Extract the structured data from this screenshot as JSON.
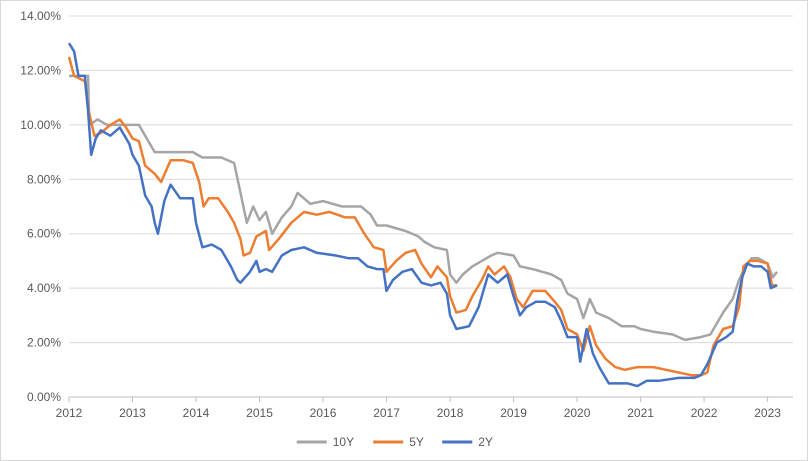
{
  "chart_data": {
    "type": "line",
    "title": "",
    "xlabel": "",
    "ylabel": "",
    "xlim": [
      2012,
      2023.4
    ],
    "ylim": [
      0,
      14
    ],
    "grid": "horizontal",
    "legend_position": "bottom",
    "x_tick_labels": [
      "2012",
      "2013",
      "2014",
      "2015",
      "2016",
      "2017",
      "2018",
      "2019",
      "2020",
      "2021",
      "2022",
      "2023"
    ],
    "y_tick_labels": [
      "0.00%",
      "2.00%",
      "4.00%",
      "6.00%",
      "8.00%",
      "10.00%",
      "12.00%",
      "14.00%"
    ],
    "series": [
      {
        "name": "10Y",
        "color": "#a5a5a5",
        "points": [
          [
            2012.0,
            11.8
          ],
          [
            2012.3,
            11.8
          ],
          [
            2012.32,
            10.0
          ],
          [
            2012.45,
            10.2
          ],
          [
            2012.6,
            10.0
          ],
          [
            2012.8,
            10.0
          ],
          [
            2013.0,
            10.0
          ],
          [
            2013.1,
            10.0
          ],
          [
            2013.35,
            9.0
          ],
          [
            2013.6,
            9.0
          ],
          [
            2013.95,
            9.0
          ],
          [
            2014.1,
            8.8
          ],
          [
            2014.4,
            8.8
          ],
          [
            2014.6,
            8.6
          ],
          [
            2014.7,
            7.5
          ],
          [
            2014.8,
            6.4
          ],
          [
            2014.9,
            7.0
          ],
          [
            2015.0,
            6.5
          ],
          [
            2015.1,
            6.8
          ],
          [
            2015.2,
            6.0
          ],
          [
            2015.35,
            6.6
          ],
          [
            2015.5,
            7.0
          ],
          [
            2015.6,
            7.5
          ],
          [
            2015.8,
            7.1
          ],
          [
            2016.0,
            7.2
          ],
          [
            2016.3,
            7.0
          ],
          [
            2016.6,
            7.0
          ],
          [
            2016.75,
            6.7
          ],
          [
            2016.85,
            6.3
          ],
          [
            2017.0,
            6.3
          ],
          [
            2017.3,
            6.1
          ],
          [
            2017.5,
            5.9
          ],
          [
            2017.6,
            5.7
          ],
          [
            2017.75,
            5.5
          ],
          [
            2017.95,
            5.4
          ],
          [
            2018.0,
            4.5
          ],
          [
            2018.1,
            4.2
          ],
          [
            2018.2,
            4.5
          ],
          [
            2018.35,
            4.8
          ],
          [
            2018.5,
            5.0
          ],
          [
            2018.65,
            5.2
          ],
          [
            2018.75,
            5.3
          ],
          [
            2019.0,
            5.2
          ],
          [
            2019.1,
            4.8
          ],
          [
            2019.3,
            4.7
          ],
          [
            2019.6,
            4.5
          ],
          [
            2019.75,
            4.3
          ],
          [
            2019.85,
            3.8
          ],
          [
            2020.0,
            3.6
          ],
          [
            2020.1,
            2.9
          ],
          [
            2020.2,
            3.6
          ],
          [
            2020.3,
            3.1
          ],
          [
            2020.5,
            2.9
          ],
          [
            2020.7,
            2.6
          ],
          [
            2020.9,
            2.6
          ],
          [
            2021.0,
            2.5
          ],
          [
            2021.2,
            2.4
          ],
          [
            2021.5,
            2.3
          ],
          [
            2021.7,
            2.1
          ],
          [
            2021.95,
            2.2
          ],
          [
            2022.1,
            2.3
          ],
          [
            2022.2,
            2.7
          ],
          [
            2022.3,
            3.1
          ],
          [
            2022.45,
            3.6
          ],
          [
            2022.55,
            4.3
          ],
          [
            2022.65,
            4.8
          ],
          [
            2022.75,
            5.1
          ],
          [
            2022.85,
            5.1
          ],
          [
            2023.0,
            4.9
          ],
          [
            2023.08,
            4.4
          ],
          [
            2023.15,
            4.6
          ]
        ]
      },
      {
        "name": "5Y",
        "color": "#ed7d31",
        "points": [
          [
            2012.0,
            12.5
          ],
          [
            2012.08,
            11.8
          ],
          [
            2012.25,
            11.6
          ],
          [
            2012.3,
            10.6
          ],
          [
            2012.4,
            9.6
          ],
          [
            2012.5,
            9.7
          ],
          [
            2012.65,
            10.0
          ],
          [
            2012.8,
            10.2
          ],
          [
            2012.9,
            9.9
          ],
          [
            2013.0,
            9.5
          ],
          [
            2013.1,
            9.4
          ],
          [
            2013.2,
            8.5
          ],
          [
            2013.35,
            8.2
          ],
          [
            2013.45,
            7.9
          ],
          [
            2013.6,
            8.7
          ],
          [
            2013.8,
            8.7
          ],
          [
            2013.95,
            8.6
          ],
          [
            2014.05,
            7.9
          ],
          [
            2014.12,
            7.0
          ],
          [
            2014.2,
            7.3
          ],
          [
            2014.35,
            7.3
          ],
          [
            2014.5,
            6.8
          ],
          [
            2014.6,
            6.4
          ],
          [
            2014.7,
            5.8
          ],
          [
            2014.75,
            5.2
          ],
          [
            2014.85,
            5.3
          ],
          [
            2014.95,
            5.9
          ],
          [
            2015.1,
            6.1
          ],
          [
            2015.15,
            5.4
          ],
          [
            2015.3,
            5.8
          ],
          [
            2015.5,
            6.4
          ],
          [
            2015.7,
            6.8
          ],
          [
            2015.9,
            6.7
          ],
          [
            2016.1,
            6.8
          ],
          [
            2016.35,
            6.6
          ],
          [
            2016.5,
            6.6
          ],
          [
            2016.65,
            6.0
          ],
          [
            2016.8,
            5.5
          ],
          [
            2016.95,
            5.4
          ],
          [
            2017.0,
            4.6
          ],
          [
            2017.15,
            5.0
          ],
          [
            2017.3,
            5.3
          ],
          [
            2017.45,
            5.4
          ],
          [
            2017.55,
            4.9
          ],
          [
            2017.7,
            4.4
          ],
          [
            2017.8,
            4.8
          ],
          [
            2017.95,
            4.4
          ],
          [
            2018.0,
            3.7
          ],
          [
            2018.1,
            3.1
          ],
          [
            2018.25,
            3.2
          ],
          [
            2018.35,
            3.7
          ],
          [
            2018.5,
            4.3
          ],
          [
            2018.6,
            4.8
          ],
          [
            2018.7,
            4.5
          ],
          [
            2018.85,
            4.8
          ],
          [
            2018.95,
            4.4
          ],
          [
            2019.05,
            3.6
          ],
          [
            2019.15,
            3.3
          ],
          [
            2019.3,
            3.9
          ],
          [
            2019.5,
            3.9
          ],
          [
            2019.65,
            3.5
          ],
          [
            2019.75,
            3.2
          ],
          [
            2019.85,
            2.5
          ],
          [
            2020.0,
            2.3
          ],
          [
            2020.1,
            1.7
          ],
          [
            2020.2,
            2.6
          ],
          [
            2020.3,
            1.9
          ],
          [
            2020.45,
            1.4
          ],
          [
            2020.6,
            1.1
          ],
          [
            2020.75,
            1.0
          ],
          [
            2020.95,
            1.1
          ],
          [
            2021.2,
            1.1
          ],
          [
            2021.4,
            1.0
          ],
          [
            2021.6,
            0.9
          ],
          [
            2021.8,
            0.8
          ],
          [
            2021.95,
            0.8
          ],
          [
            2022.05,
            0.9
          ],
          [
            2022.15,
            1.9
          ],
          [
            2022.3,
            2.5
          ],
          [
            2022.45,
            2.6
          ],
          [
            2022.55,
            3.3
          ],
          [
            2022.62,
            4.8
          ],
          [
            2022.72,
            5.0
          ],
          [
            2022.85,
            5.0
          ],
          [
            2023.0,
            4.9
          ],
          [
            2023.07,
            4.1
          ],
          [
            2023.15,
            4.1
          ]
        ]
      },
      {
        "name": "2Y",
        "color": "#4472c4",
        "points": [
          [
            2012.0,
            13.0
          ],
          [
            2012.08,
            12.7
          ],
          [
            2012.15,
            11.8
          ],
          [
            2012.25,
            11.8
          ],
          [
            2012.3,
            10.5
          ],
          [
            2012.35,
            8.9
          ],
          [
            2012.42,
            9.5
          ],
          [
            2012.5,
            9.8
          ],
          [
            2012.65,
            9.6
          ],
          [
            2012.8,
            9.9
          ],
          [
            2012.95,
            9.3
          ],
          [
            2013.0,
            8.9
          ],
          [
            2013.1,
            8.5
          ],
          [
            2013.2,
            7.4
          ],
          [
            2013.3,
            7.0
          ],
          [
            2013.35,
            6.4
          ],
          [
            2013.4,
            6.0
          ],
          [
            2013.5,
            7.2
          ],
          [
            2013.6,
            7.8
          ],
          [
            2013.75,
            7.3
          ],
          [
            2013.95,
            7.3
          ],
          [
            2014.0,
            6.4
          ],
          [
            2014.1,
            5.5
          ],
          [
            2014.25,
            5.6
          ],
          [
            2014.4,
            5.4
          ],
          [
            2014.55,
            4.8
          ],
          [
            2014.65,
            4.3
          ],
          [
            2014.7,
            4.2
          ],
          [
            2014.85,
            4.6
          ],
          [
            2014.95,
            5.0
          ],
          [
            2015.0,
            4.6
          ],
          [
            2015.1,
            4.7
          ],
          [
            2015.2,
            4.6
          ],
          [
            2015.35,
            5.2
          ],
          [
            2015.5,
            5.4
          ],
          [
            2015.7,
            5.5
          ],
          [
            2015.9,
            5.3
          ],
          [
            2016.2,
            5.2
          ],
          [
            2016.4,
            5.1
          ],
          [
            2016.55,
            5.1
          ],
          [
            2016.7,
            4.8
          ],
          [
            2016.85,
            4.7
          ],
          [
            2016.95,
            4.7
          ],
          [
            2017.0,
            3.9
          ],
          [
            2017.1,
            4.3
          ],
          [
            2017.25,
            4.6
          ],
          [
            2017.4,
            4.7
          ],
          [
            2017.55,
            4.2
          ],
          [
            2017.7,
            4.1
          ],
          [
            2017.85,
            4.2
          ],
          [
            2017.95,
            3.8
          ],
          [
            2018.0,
            3.0
          ],
          [
            2018.1,
            2.5
          ],
          [
            2018.3,
            2.6
          ],
          [
            2018.45,
            3.3
          ],
          [
            2018.6,
            4.5
          ],
          [
            2018.75,
            4.2
          ],
          [
            2018.9,
            4.5
          ],
          [
            2019.0,
            3.7
          ],
          [
            2019.1,
            3.0
          ],
          [
            2019.2,
            3.3
          ],
          [
            2019.35,
            3.5
          ],
          [
            2019.5,
            3.5
          ],
          [
            2019.65,
            3.3
          ],
          [
            2019.75,
            2.8
          ],
          [
            2019.85,
            2.2
          ],
          [
            2020.0,
            2.2
          ],
          [
            2020.05,
            1.3
          ],
          [
            2020.15,
            2.5
          ],
          [
            2020.25,
            1.6
          ],
          [
            2020.35,
            1.1
          ],
          [
            2020.5,
            0.5
          ],
          [
            2020.65,
            0.5
          ],
          [
            2020.8,
            0.5
          ],
          [
            2020.95,
            0.4
          ],
          [
            2021.1,
            0.6
          ],
          [
            2021.3,
            0.6
          ],
          [
            2021.6,
            0.7
          ],
          [
            2021.85,
            0.7
          ],
          [
            2021.95,
            0.8
          ],
          [
            2022.05,
            1.2
          ],
          [
            2022.2,
            2.0
          ],
          [
            2022.35,
            2.2
          ],
          [
            2022.45,
            2.4
          ],
          [
            2022.52,
            3.5
          ],
          [
            2022.6,
            4.4
          ],
          [
            2022.68,
            4.9
          ],
          [
            2022.78,
            4.8
          ],
          [
            2022.9,
            4.8
          ],
          [
            2023.0,
            4.6
          ],
          [
            2023.05,
            4.0
          ],
          [
            2023.15,
            4.1
          ]
        ]
      }
    ]
  }
}
